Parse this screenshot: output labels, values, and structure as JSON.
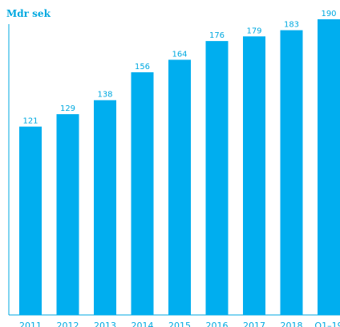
{
  "chart_data": {
    "type": "bar",
    "ylabel": "Mdr sek",
    "categories": [
      "2011",
      "2012",
      "2013",
      "2014",
      "2015",
      "2016",
      "2017",
      "2018",
      "Q1–19"
    ],
    "values": [
      121,
      129,
      138,
      156,
      164,
      176,
      179,
      183,
      190
    ],
    "ylim": [
      0,
      190
    ],
    "grid": false,
    "legend": "none",
    "colors": {
      "bar": "#00aeef",
      "text": "#00a9e0",
      "axis": "#00a9e0"
    }
  }
}
